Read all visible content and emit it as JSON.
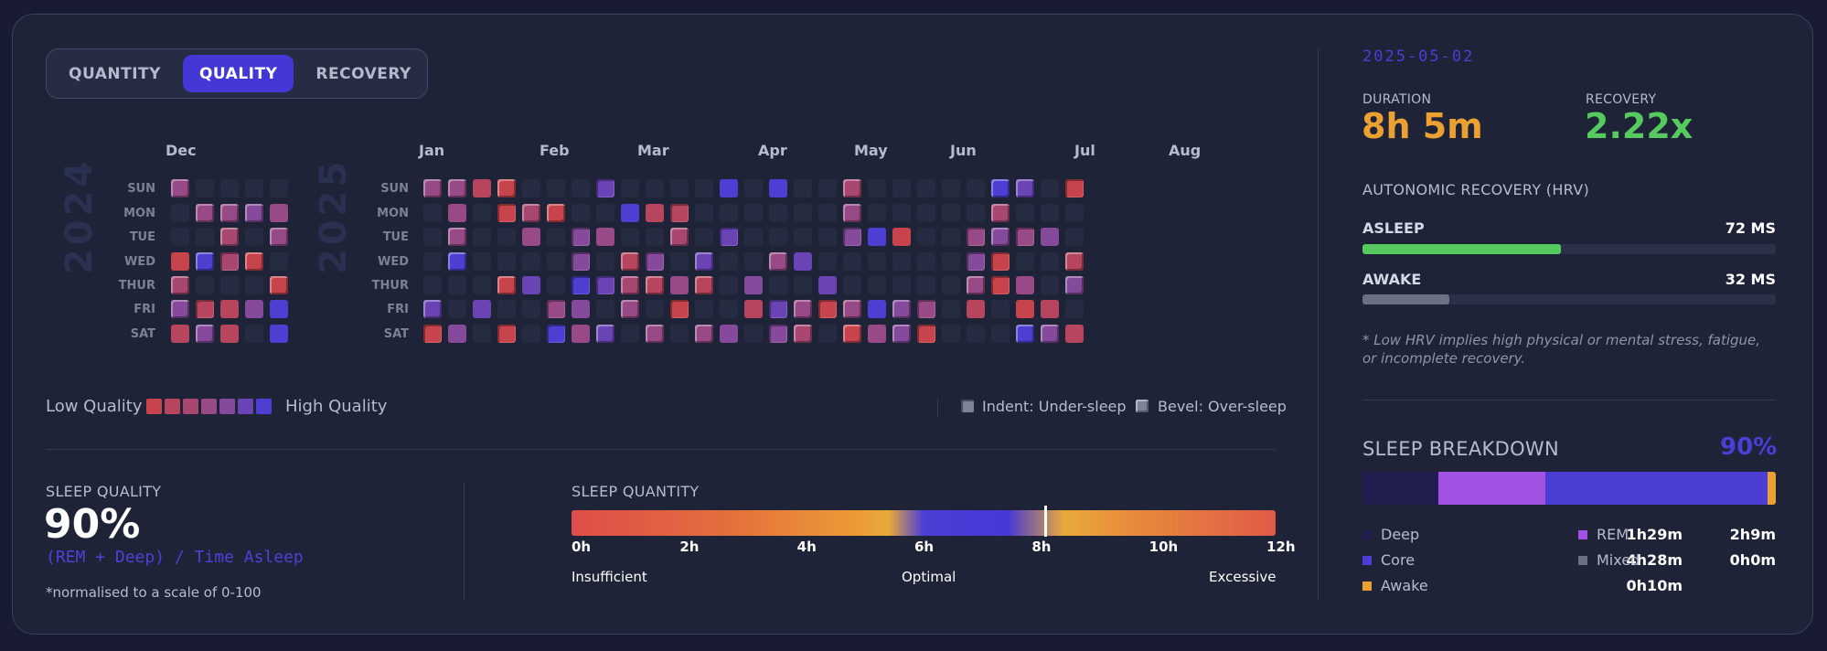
{
  "tabs": [
    {
      "label": "QUANTITY",
      "active": false
    },
    {
      "label": "QUALITY",
      "active": true
    },
    {
      "label": "RECOVERY",
      "active": false
    }
  ],
  "heatmap": {
    "years": [
      "2024",
      "2025"
    ],
    "days": [
      "SUN",
      "MON",
      "TUE",
      "WED",
      "THUR",
      "FRI",
      "SAT"
    ],
    "months_2024": [
      "Dec"
    ],
    "months_2025": [
      "Jan",
      "Feb",
      "Mar",
      "Apr",
      "May",
      "Jun",
      "Jul",
      "Aug"
    ]
  },
  "legend": {
    "low": "Low Quality",
    "high": "High Quality",
    "colors": [
      "#c8444d",
      "#b8455e",
      "#a84870",
      "#974a85",
      "#854a9c",
      "#6a44b5",
      "#4e3fd2"
    ],
    "indent": "Indent: Under-sleep",
    "bevel": "Bevel: Over-sleep"
  },
  "sleep_quality": {
    "label": "SLEEP QUALITY",
    "value": "90%",
    "formula": "(REM + Deep) / Time Asleep",
    "note": "*normalised to a scale of 0-100"
  },
  "sleep_quantity": {
    "label": "SLEEP QUANTITY",
    "ticks": [
      "0h",
      "2h",
      "4h",
      "6h",
      "8h",
      "10h",
      "12h"
    ],
    "marker_hours": 8.08,
    "zones": [
      "Insufficient",
      "Optimal",
      "Excessive"
    ]
  },
  "details": {
    "date": "2025-05-02",
    "duration_label": "DURATION",
    "duration": "8h 5m",
    "recovery_label": "RECOVERY",
    "recovery": "2.22x",
    "hrv_title": "AUTONOMIC RECOVERY (HRV)",
    "hrv": [
      {
        "label": "ASLEEP",
        "value": "72 MS",
        "fraction": 0.48,
        "color": "#56c95f"
      },
      {
        "label": "AWAKE",
        "value": "32 MS",
        "fraction": 0.21,
        "color": "#6b7084"
      }
    ],
    "hrv_note": "* Low HRV implies high physical or mental stress, fatigue, or incomplete recovery."
  },
  "breakdown": {
    "title": "SLEEP BREAKDOWN",
    "pct": "90%",
    "segments": [
      {
        "name": "Deep",
        "fraction": 0.184,
        "color": "#221e4f"
      },
      {
        "name": "REM",
        "fraction": 0.26,
        "color": "#a152e3"
      },
      {
        "name": "Core",
        "fraction": 0.54,
        "color": "#4b3ed4"
      },
      {
        "name": "Awake",
        "fraction": 0.02,
        "color": "#eba132"
      }
    ],
    "items": [
      {
        "name": "Deep",
        "value": "1h29m",
        "color": "#221e4f"
      },
      {
        "name": "REM",
        "value": "2h9m",
        "color": "#a152e3"
      },
      {
        "name": "Core",
        "value": "4h28m",
        "color": "#4b3ed4"
      },
      {
        "name": "Mixed",
        "value": "0h0m",
        "color": "#6b7084"
      },
      {
        "name": "Awake",
        "value": "0h10m",
        "color": "#eba132"
      }
    ]
  }
}
